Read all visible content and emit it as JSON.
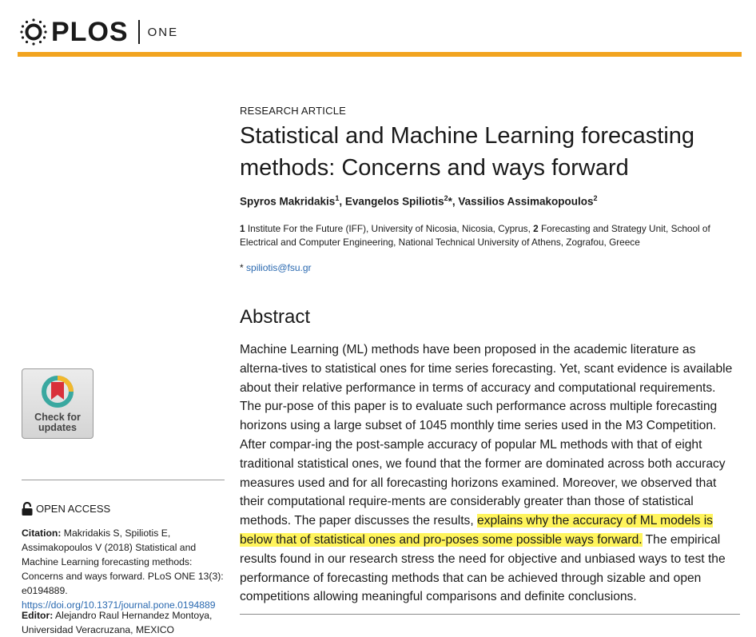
{
  "header": {
    "logo_text": "PLOS",
    "logo_sub": "ONE",
    "brand_color": "#f2a41f"
  },
  "article": {
    "type": "RESEARCH ARTICLE",
    "title": "Statistical and Machine Learning forecasting methods: Concerns and ways forward",
    "authors": [
      {
        "name": "Spyros Makridakis",
        "sup": "1",
        "after": ", "
      },
      {
        "name": "Evangelos Spiliotis",
        "sup": "2",
        "after": "*, "
      },
      {
        "name": "Vassilios Assimakopoulos",
        "sup": "2",
        "after": ""
      }
    ],
    "affiliations": {
      "num1": "1",
      "text1": " Institute For the Future (IFF), University of Nicosia, Nicosia, Cyprus, ",
      "num2": "2",
      "text2": " Forecasting and Strategy Unit, School of Electrical and Computer Engineering, National Technical University of Athens, Zografou, Greece"
    },
    "email_star": "* ",
    "email": "spiliotis@fsu.gr"
  },
  "abstract": {
    "heading": "Abstract",
    "text_before": "Machine Learning (ML) methods have been proposed in the academic literature as alterna-tives to statistical ones for time series forecasting. Yet, scant evidence is available about their relative performance in terms of accuracy and computational requirements. The pur-pose of this paper is to evaluate such performance across multiple forecasting horizons using a large subset of 1045 monthly time series used in the M3 Competition. After compar-ing the post-sample accuracy of popular ML methods with that of eight traditional statistical ones, we found that the former are dominated across both accuracy measures used and for all forecasting horizons examined. Moreover, we observed that their computational require-ments are considerably greater than those of statistical methods. The paper discusses the results, ",
    "text_highlight": "explains why the accuracy of ML models is below that of statistical ones and pro-poses some possible ways forward.",
    "text_after": " The empirical results found in our research stress the need for objective and unbiased ways to test the performance of forecasting methods that can be achieved through sizable and open competitions allowing meaningful comparisons and definite conclusions.",
    "highlight_color": "#fff45c"
  },
  "sidebar": {
    "check_updates": "Check for updates",
    "open_access": "OPEN ACCESS",
    "citation_label": "Citation:",
    "citation_text": " Makridakis S, Spiliotis E, Assimakopoulos V (2018) Statistical and Machine Learning forecasting methods: Concerns and ways forward. PLoS ONE 13(3): e0194889. ",
    "citation_link": "https://doi.org/10.1371/journal.pone.0194889",
    "editor_label": "Editor:",
    "editor_text": " Alejandro Raul Hernandez Montoya, Universidad Veracruzana, MEXICO"
  }
}
